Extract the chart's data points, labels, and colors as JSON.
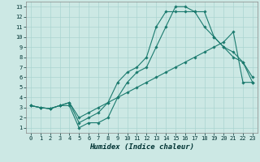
{
  "xlabel": "Humidex (Indice chaleur)",
  "bg_color": "#cce8e4",
  "grid_color": "#aad4d0",
  "line_color": "#1a7a6e",
  "line1": {
    "x": [
      0,
      1,
      2,
      3,
      4,
      5,
      6,
      7,
      8,
      9,
      10,
      11,
      12,
      13,
      14,
      15,
      16,
      17,
      18,
      19,
      20,
      21,
      22,
      23
    ],
    "y": [
      3.2,
      3.0,
      2.9,
      3.2,
      3.2,
      1.0,
      1.5,
      1.5,
      2.0,
      4.0,
      5.5,
      6.5,
      7.0,
      9.0,
      11.0,
      13.0,
      13.0,
      12.5,
      12.5,
      10.0,
      9.0,
      8.0,
      7.5,
      5.5
    ]
  },
  "line2": {
    "x": [
      0,
      1,
      2,
      3,
      4,
      5,
      6,
      7,
      8,
      9,
      10,
      11,
      12,
      13,
      14,
      15,
      16,
      17,
      18,
      19,
      20,
      21,
      22,
      23
    ],
    "y": [
      3.2,
      3.0,
      2.9,
      3.2,
      3.5,
      1.5,
      2.0,
      2.5,
      3.5,
      5.5,
      6.5,
      7.0,
      8.0,
      11.0,
      12.5,
      12.5,
      12.5,
      12.5,
      11.0,
      10.0,
      9.0,
      8.5,
      7.5,
      6.0
    ]
  },
  "line3": {
    "x": [
      0,
      1,
      2,
      3,
      4,
      5,
      6,
      7,
      8,
      9,
      10,
      11,
      12,
      13,
      14,
      15,
      16,
      17,
      18,
      19,
      20,
      21,
      22,
      23
    ],
    "y": [
      3.2,
      3.0,
      2.9,
      3.2,
      3.5,
      2.0,
      2.5,
      3.0,
      3.5,
      4.0,
      4.5,
      5.0,
      5.5,
      6.0,
      6.5,
      7.0,
      7.5,
      8.0,
      8.5,
      9.0,
      9.5,
      10.5,
      5.5,
      5.5
    ]
  },
  "xlim": [
    -0.5,
    23.5
  ],
  "ylim": [
    0.5,
    13.5
  ],
  "xticks": [
    0,
    1,
    2,
    3,
    4,
    5,
    6,
    7,
    8,
    9,
    10,
    11,
    12,
    13,
    14,
    15,
    16,
    17,
    18,
    19,
    20,
    21,
    22,
    23
  ],
  "yticks": [
    1,
    2,
    3,
    4,
    5,
    6,
    7,
    8,
    9,
    10,
    11,
    12,
    13
  ],
  "marker": "D",
  "markersize": 1.8,
  "linewidth": 0.8,
  "label_fontsize": 6.5,
  "tick_fontsize": 5.0
}
